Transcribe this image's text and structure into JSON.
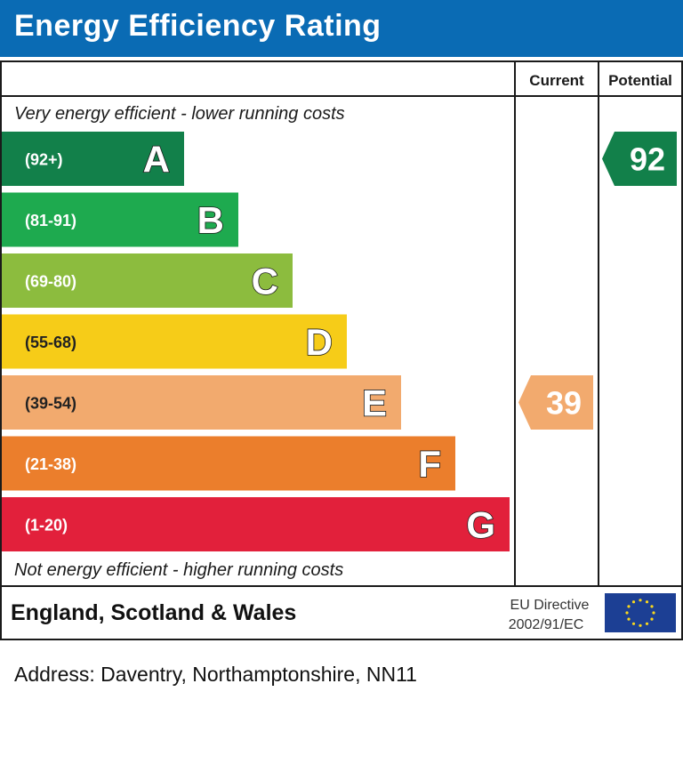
{
  "header": {
    "title": "Energy Efficiency Rating"
  },
  "chart_data": {
    "type": "bar",
    "columns": [
      "Current",
      "Potential"
    ],
    "top_caption": "Very energy efficient - lower running costs",
    "bottom_caption": "Not energy efficient - higher running costs",
    "bands": [
      {
        "letter": "A",
        "range": "(92+)",
        "min": 92,
        "max": 100,
        "color": "#12804a"
      },
      {
        "letter": "B",
        "range": "(81-91)",
        "min": 81,
        "max": 91,
        "color": "#1eaa4f"
      },
      {
        "letter": "C",
        "range": "(69-80)",
        "min": 69,
        "max": 80,
        "color": "#8cbc3e"
      },
      {
        "letter": "D",
        "range": "(55-68)",
        "min": 55,
        "max": 68,
        "color": "#f6cc18"
      },
      {
        "letter": "E",
        "range": "(39-54)",
        "min": 39,
        "max": 54,
        "color": "#f2aa6e"
      },
      {
        "letter": "F",
        "range": "(21-38)",
        "min": 21,
        "max": 38,
        "color": "#eb7e2c"
      },
      {
        "letter": "G",
        "range": "(1-20)",
        "min": 1,
        "max": 20,
        "color": "#e2203b"
      }
    ],
    "current": {
      "value": 39,
      "band": "E",
      "color": "#f2aa6e"
    },
    "potential": {
      "value": 92,
      "band": "A",
      "color": "#12804a"
    }
  },
  "footer": {
    "region": "England, Scotland & Wales",
    "directive_line1": "EU Directive",
    "directive_line2": "2002/91/EC",
    "flag_icon": "eu-flag-icon",
    "flag_color": "#1c3f94",
    "star_color": "#f9d71c"
  },
  "address": "Address: Daventry, Northamptonshire, NN11"
}
